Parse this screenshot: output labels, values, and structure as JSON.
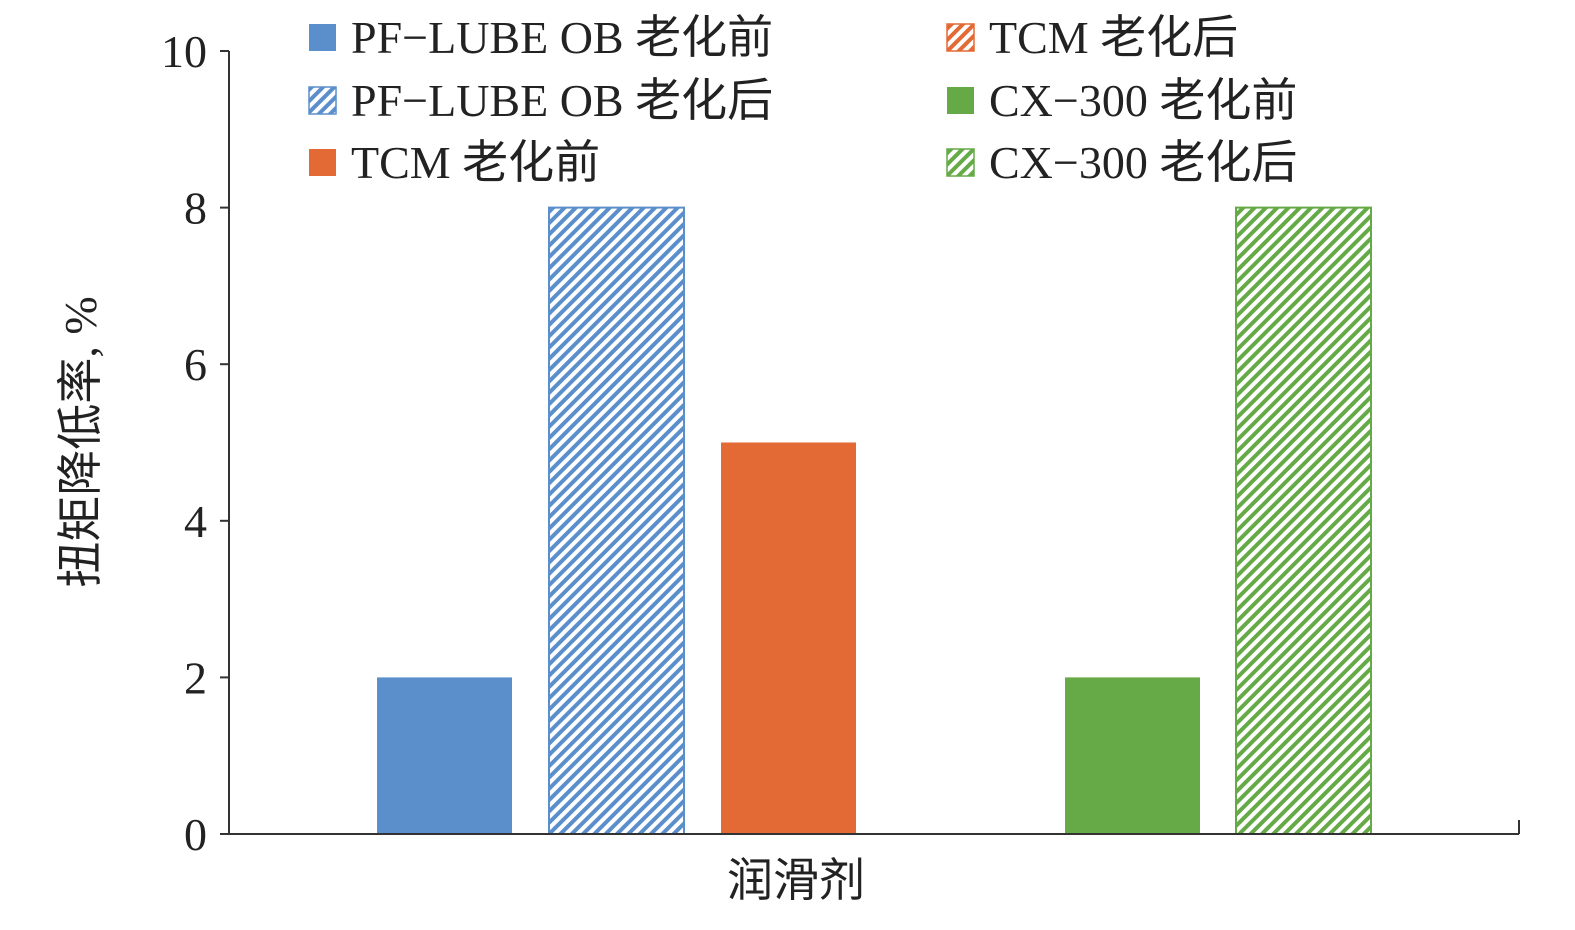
{
  "chart_data": {
    "type": "bar",
    "xlabel": "润滑剂",
    "ylabel": "扭矩降低率, %",
    "ylim": [
      0,
      10
    ],
    "yticks": [
      0,
      2,
      4,
      6,
      8,
      10
    ],
    "grid": false,
    "legend_position": "top",
    "series": [
      {
        "name": "PF−LUBE OB 老化前",
        "value": 2,
        "color": "#5b8fcc",
        "pattern": "solid"
      },
      {
        "name": "PF−LUBE OB 老化后",
        "value": 8,
        "color": "#5b8fcc",
        "pattern": "hatched"
      },
      {
        "name": "TCM 老化前",
        "value": 5,
        "color": "#e36a35",
        "pattern": "solid"
      },
      {
        "name": "TCM 老化后",
        "value": null,
        "color": "#e36a35",
        "pattern": "hatched"
      },
      {
        "name": "CX−300 老化前",
        "value": 2,
        "color": "#66aa48",
        "pattern": "solid"
      },
      {
        "name": "CX−300 老化后",
        "value": 8,
        "color": "#66aa48",
        "pattern": "hatched"
      }
    ]
  }
}
